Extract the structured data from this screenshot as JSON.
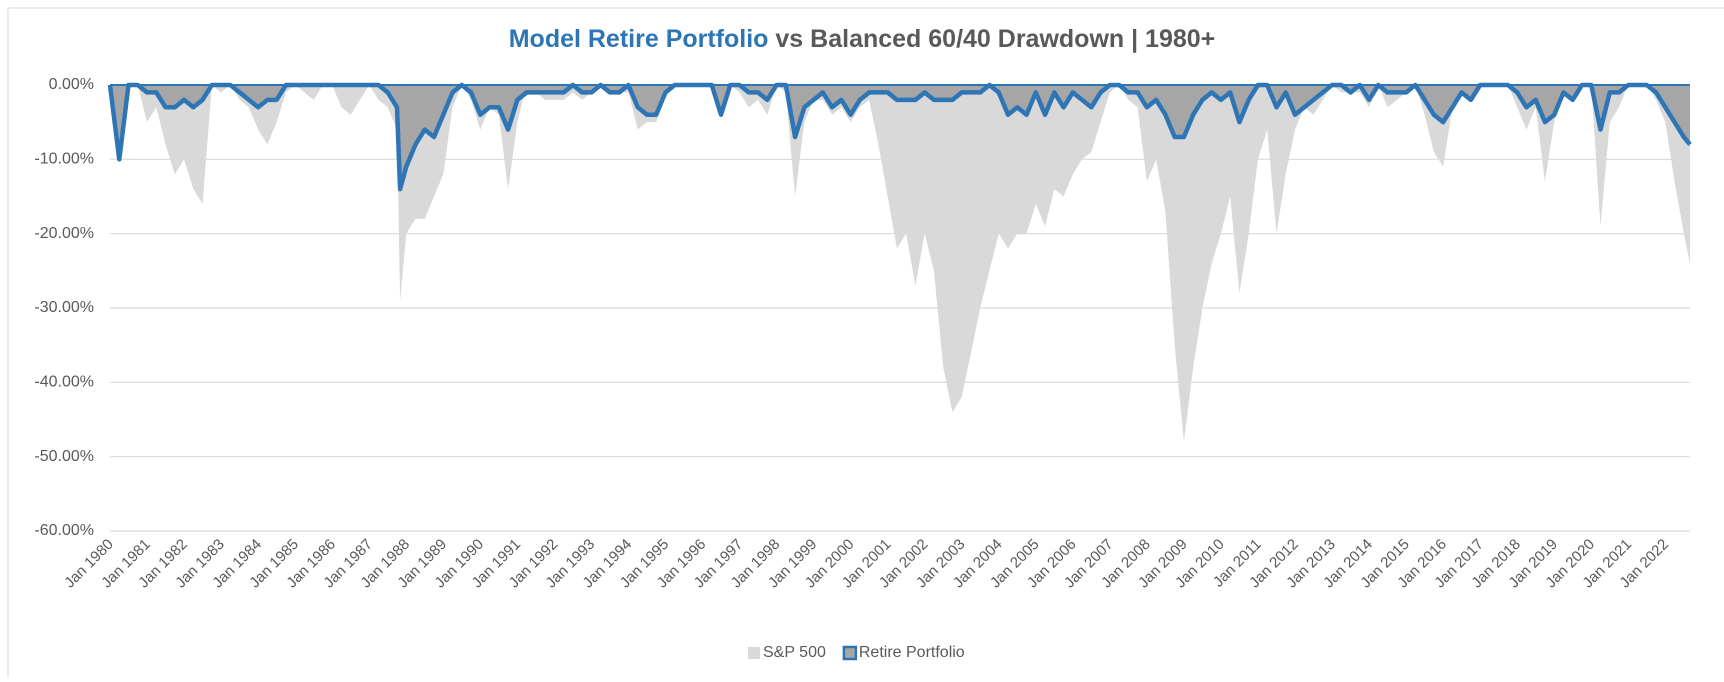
{
  "chart_data": {
    "type": "area",
    "title_highlight": "Model Retire Portfolio",
    "title": "vs Balanced 60/40 Drawdown | 1980+",
    "x": [
      "1980-01",
      "1980-04",
      "1980-07",
      "1980-10",
      "1981-01",
      "1981-04",
      "1981-07",
      "1981-10",
      "1982-01",
      "1982-04",
      "1982-07",
      "1982-10",
      "1983-01",
      "1983-04",
      "1983-07",
      "1983-10",
      "1984-01",
      "1984-04",
      "1984-07",
      "1984-10",
      "1985-01",
      "1985-04",
      "1985-07",
      "1985-10",
      "1986-01",
      "1986-04",
      "1986-07",
      "1986-10",
      "1987-01",
      "1987-04",
      "1987-07",
      "1987-10",
      "1987-11",
      "1988-01",
      "1988-04",
      "1988-07",
      "1988-10",
      "1989-01",
      "1989-04",
      "1989-07",
      "1989-10",
      "1990-01",
      "1990-04",
      "1990-07",
      "1990-10",
      "1991-01",
      "1991-04",
      "1991-07",
      "1991-10",
      "1992-01",
      "1992-04",
      "1992-07",
      "1992-10",
      "1993-01",
      "1993-04",
      "1993-07",
      "1993-10",
      "1994-01",
      "1994-04",
      "1994-07",
      "1994-10",
      "1995-01",
      "1995-04",
      "1995-07",
      "1995-10",
      "1996-01",
      "1996-04",
      "1996-07",
      "1996-10",
      "1997-01",
      "1997-04",
      "1997-07",
      "1997-10",
      "1998-01",
      "1998-04",
      "1998-07",
      "1998-10",
      "1999-01",
      "1999-04",
      "1999-07",
      "1999-10",
      "2000-01",
      "2000-04",
      "2000-07",
      "2000-10",
      "2001-01",
      "2001-04",
      "2001-07",
      "2001-10",
      "2002-01",
      "2002-04",
      "2002-07",
      "2002-10",
      "2003-01",
      "2003-04",
      "2003-07",
      "2003-10",
      "2004-01",
      "2004-04",
      "2004-07",
      "2004-10",
      "2005-01",
      "2005-04",
      "2005-07",
      "2005-10",
      "2006-01",
      "2006-04",
      "2006-07",
      "2006-10",
      "2007-01",
      "2007-04",
      "2007-07",
      "2007-10",
      "2008-01",
      "2008-04",
      "2008-07",
      "2008-10",
      "2009-01",
      "2009-04",
      "2009-07",
      "2009-10",
      "2010-01",
      "2010-04",
      "2010-07",
      "2010-10",
      "2011-01",
      "2011-04",
      "2011-07",
      "2011-10",
      "2012-01",
      "2012-04",
      "2012-07",
      "2012-10",
      "2013-01",
      "2013-04",
      "2013-07",
      "2013-10",
      "2014-01",
      "2014-04",
      "2014-07",
      "2014-10",
      "2015-01",
      "2015-04",
      "2015-07",
      "2015-10",
      "2016-01",
      "2016-04",
      "2016-07",
      "2016-10",
      "2017-01",
      "2017-04",
      "2017-07",
      "2017-10",
      "2018-01",
      "2018-04",
      "2018-07",
      "2018-10",
      "2019-01",
      "2019-04",
      "2019-07",
      "2019-10",
      "2020-01",
      "2020-04",
      "2020-07",
      "2020-10",
      "2021-01",
      "2021-04",
      "2021-07",
      "2021-10",
      "2022-01",
      "2022-04",
      "2022-07",
      "2022-09"
    ],
    "series": [
      {
        "name": "S&P 500",
        "color": "#d9d9d9",
        "values": [
          0,
          -10,
          0,
          0,
          -5,
          -3,
          -8,
          -12,
          -10,
          -14,
          -16,
          0,
          -1,
          0,
          -2,
          -3,
          -6,
          -8,
          -5,
          -1,
          0,
          -1,
          -2,
          0,
          0,
          -3,
          -4,
          -2,
          0,
          -2,
          -3,
          -6,
          -29,
          -20,
          -18,
          -18,
          -15,
          -12,
          -3,
          0,
          -2,
          -6,
          -3,
          -4,
          -14,
          -5,
          0,
          -1,
          -2,
          -2,
          -2,
          -1,
          -2,
          -1,
          0,
          -1,
          -1,
          -1,
          -6,
          -5,
          -5,
          -1,
          0,
          0,
          0,
          0,
          0,
          -4,
          0,
          -1,
          -3,
          -2,
          -4,
          0,
          -1,
          -15,
          -5,
          -2,
          -2,
          -4,
          -3,
          -5,
          -3,
          -2,
          -8,
          -15,
          -22,
          -20,
          -27,
          -20,
          -25,
          -38,
          -44,
          -42,
          -36,
          -30,
          -25,
          -20,
          -22,
          -20,
          -20,
          -16,
          -19,
          -14,
          -15,
          -12,
          -10,
          -9,
          -5,
          -1,
          0,
          -2,
          -3,
          -13,
          -10,
          -17,
          -35,
          -48,
          -38,
          -30,
          -24,
          -20,
          -15,
          -28,
          -20,
          -10,
          -6,
          -20,
          -12,
          -6,
          -3,
          -4,
          -2,
          0,
          -1,
          -1,
          -1,
          -3,
          0,
          -3,
          -2,
          -1,
          0,
          -4,
          -9,
          -11,
          -3,
          0,
          -2,
          0,
          0,
          0,
          0,
          -3,
          -6,
          -3,
          -13,
          -5,
          -1,
          -2,
          0,
          0,
          -19,
          -5,
          -3,
          0,
          0,
          0,
          -2,
          -5,
          -13,
          -20,
          -24
        ]
      },
      {
        "name": "Retire Portfolio",
        "color": "#2e75b6",
        "area_color": "#a6a6a6",
        "values": [
          0,
          -10,
          0,
          0,
          -1,
          -1,
          -3,
          -3,
          -2,
          -3,
          -2,
          0,
          0,
          0,
          -1,
          -2,
          -3,
          -2,
          -2,
          0,
          0,
          0,
          0,
          0,
          0,
          0,
          0,
          0,
          0,
          0,
          -1,
          -3,
          -14,
          -11,
          -8,
          -6,
          -7,
          -4,
          -1,
          0,
          -1,
          -4,
          -3,
          -3,
          -6,
          -2,
          -1,
          -1,
          -1,
          -1,
          -1,
          0,
          -1,
          -1,
          0,
          -1,
          -1,
          0,
          -3,
          -4,
          -4,
          -1,
          0,
          0,
          0,
          0,
          0,
          -4,
          0,
          0,
          -1,
          -1,
          -2,
          0,
          0,
          -7,
          -3,
          -2,
          -1,
          -3,
          -2,
          -4,
          -2,
          -1,
          -1,
          -1,
          -2,
          -2,
          -2,
          -1,
          -2,
          -2,
          -2,
          -1,
          -1,
          -1,
          0,
          -1,
          -4,
          -3,
          -4,
          -1,
          -4,
          -1,
          -3,
          -1,
          -2,
          -3,
          -1,
          0,
          0,
          -1,
          -1,
          -3,
          -2,
          -4,
          -7,
          -7,
          -4,
          -2,
          -1,
          -2,
          -1,
          -5,
          -2,
          0,
          0,
          -3,
          -1,
          -4,
          -3,
          -2,
          -1,
          0,
          0,
          -1,
          0,
          -2,
          0,
          -1,
          -1,
          -1,
          0,
          -2,
          -4,
          -5,
          -3,
          -1,
          -2,
          0,
          0,
          0,
          0,
          -1,
          -3,
          -2,
          -5,
          -4,
          -1,
          -2,
          0,
          0,
          -6,
          -1,
          -1,
          0,
          0,
          0,
          -1,
          -3,
          -5,
          -7,
          -8
        ]
      }
    ],
    "xlim": [
      "1980-01",
      "2022-09"
    ],
    "xticks": [
      {
        "value": "1980-01",
        "label": "Jan 1980"
      },
      {
        "value": "1981-01",
        "label": "Jan 1981"
      },
      {
        "value": "1982-01",
        "label": "Jan 1982"
      },
      {
        "value": "1983-01",
        "label": "Jan 1983"
      },
      {
        "value": "1984-01",
        "label": "Jan 1984"
      },
      {
        "value": "1985-01",
        "label": "Jan 1985"
      },
      {
        "value": "1986-01",
        "label": "Jan 1986"
      },
      {
        "value": "1987-01",
        "label": "Jan 1987"
      },
      {
        "value": "1988-01",
        "label": "Jan 1988"
      },
      {
        "value": "1989-01",
        "label": "Jan 1989"
      },
      {
        "value": "1990-01",
        "label": "Jan 1990"
      },
      {
        "value": "1991-01",
        "label": "Jan 1991"
      },
      {
        "value": "1992-01",
        "label": "Jan 1992"
      },
      {
        "value": "1993-01",
        "label": "Jan 1993"
      },
      {
        "value": "1994-01",
        "label": "Jan 1994"
      },
      {
        "value": "1995-01",
        "label": "Jan 1995"
      },
      {
        "value": "1996-01",
        "label": "Jan 1996"
      },
      {
        "value": "1997-01",
        "label": "Jan 1997"
      },
      {
        "value": "1998-01",
        "label": "Jan 1998"
      },
      {
        "value": "1999-01",
        "label": "Jan 1999"
      },
      {
        "value": "2000-01",
        "label": "Jan 2000"
      },
      {
        "value": "2001-01",
        "label": "Jan 2001"
      },
      {
        "value": "2002-01",
        "label": "Jan 2002"
      },
      {
        "value": "2003-01",
        "label": "Jan 2003"
      },
      {
        "value": "2004-01",
        "label": "Jan 2004"
      },
      {
        "value": "2005-01",
        "label": "Jan 2005"
      },
      {
        "value": "2006-01",
        "label": "Jan 2006"
      },
      {
        "value": "2007-01",
        "label": "Jan 2007"
      },
      {
        "value": "2008-01",
        "label": "Jan 2008"
      },
      {
        "value": "2009-01",
        "label": "Jan 2009"
      },
      {
        "value": "2010-01",
        "label": "Jan 2010"
      },
      {
        "value": "2011-01",
        "label": "Jan 2011"
      },
      {
        "value": "2012-01",
        "label": "Jan 2012"
      },
      {
        "value": "2013-01",
        "label": "Jan 2013"
      },
      {
        "value": "2014-01",
        "label": "Jan 2014"
      },
      {
        "value": "2015-01",
        "label": "Jan 2015"
      },
      {
        "value": "2016-01",
        "label": "Jan 2016"
      },
      {
        "value": "2017-01",
        "label": "Jan 2017"
      },
      {
        "value": "2018-01",
        "label": "Jan 2018"
      },
      {
        "value": "2019-01",
        "label": "Jan 2019"
      },
      {
        "value": "2020-01",
        "label": "Jan 2020"
      },
      {
        "value": "2021-01",
        "label": "Jan 2021"
      },
      {
        "value": "2022-01",
        "label": "Jan 2022"
      }
    ],
    "ylim": [
      -60,
      0
    ],
    "yticks": [
      {
        "value": 0,
        "label": "0.00%"
      },
      {
        "value": -10,
        "label": "-10.00%"
      },
      {
        "value": -20,
        "label": "-20.00%"
      },
      {
        "value": -30,
        "label": "-30.00%"
      },
      {
        "value": -40,
        "label": "-40.00%"
      },
      {
        "value": -50,
        "label": "-50.00%"
      },
      {
        "value": -60,
        "label": "-60.00%"
      }
    ],
    "grid": true,
    "legend": "bottom"
  }
}
